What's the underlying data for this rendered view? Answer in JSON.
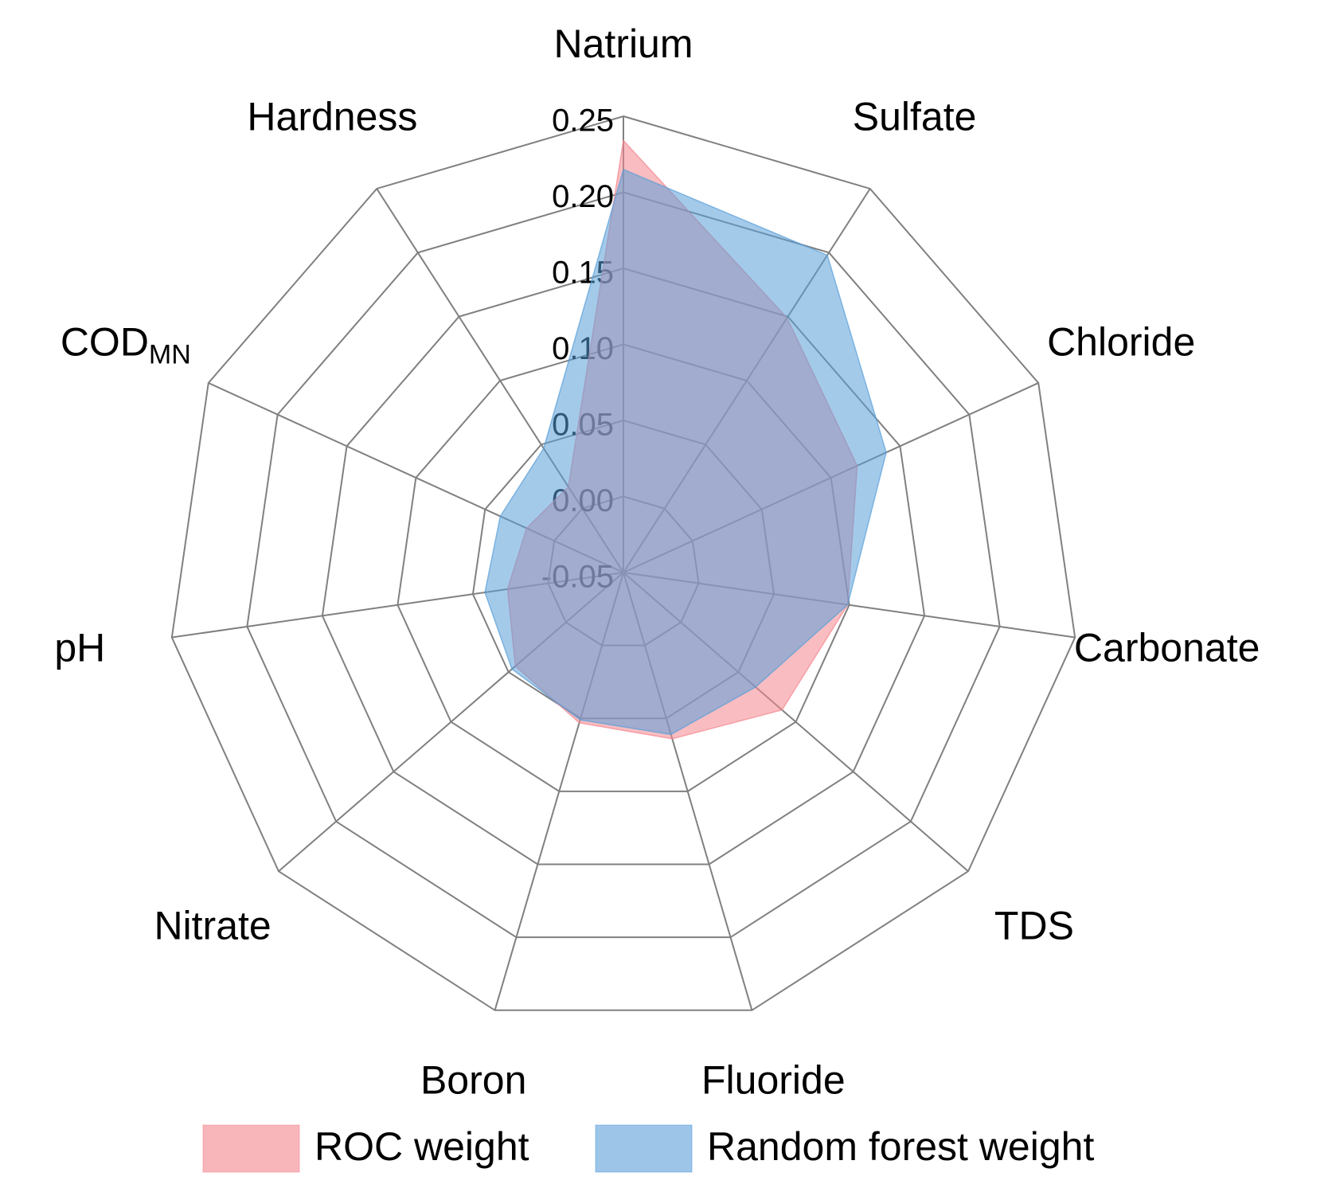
{
  "chart_data": {
    "type": "radar",
    "categories": [
      "Natrium",
      "Sulfate",
      "Chloride",
      "Carbonate",
      "TDS",
      "Fluoride",
      "Boron",
      "Nitrate",
      "pH",
      {
        "text": "COD",
        "subscript": "MN"
      },
      "Hardness"
    ],
    "series": [
      {
        "name": "ROC weight",
        "color": "#f4868e",
        "values": [
          0.234,
          0.149,
          0.119,
          0.099,
          0.088,
          0.064,
          0.053,
          0.044,
          0.027,
          0.02,
          0.017
        ]
      },
      {
        "name": "Random forest weight",
        "color": "#5a9fd8",
        "values": [
          0.215,
          0.198,
          0.14,
          0.099,
          0.065,
          0.061,
          0.051,
          0.047,
          0.042,
          0.039,
          0.047
        ]
      }
    ],
    "ylim": [
      -0.05,
      0.25
    ],
    "yticks": [
      -0.05,
      {
        "value": 0,
        "label": "0.00"
      },
      0.05,
      {
        "value": 0.1,
        "label": "0.10"
      },
      0.15,
      {
        "value": 0.2,
        "label": "0.20"
      },
      0.25
    ],
    "grid": true,
    "legend": "bottom"
  }
}
